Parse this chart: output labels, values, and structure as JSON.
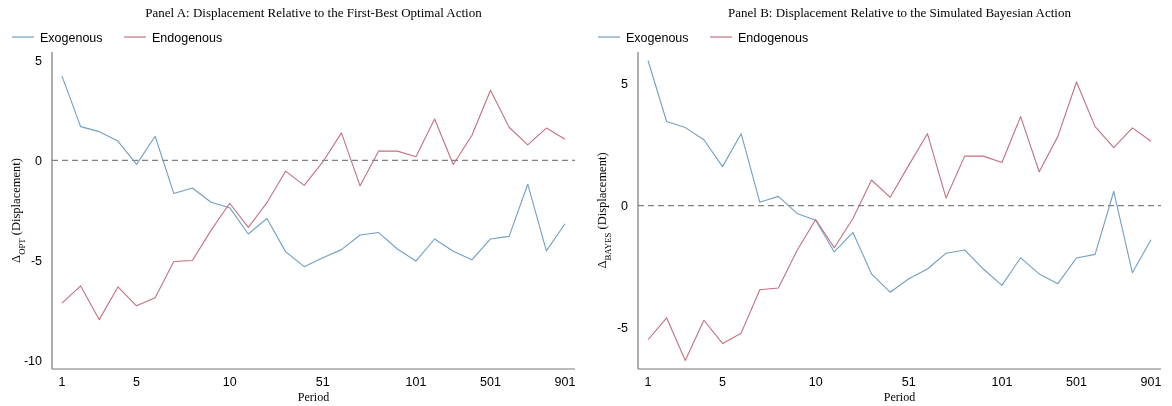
{
  "chart_data": [
    {
      "type": "line",
      "title": "Panel A: Displacement Relative to the First-Best Optimal Action",
      "xlabel": "Period",
      "ylabel": "Δ$_{OPT}$ (Displacement)",
      "categories": [
        "1",
        null,
        null,
        null,
        "5",
        null,
        null,
        null,
        null,
        "10",
        null,
        null,
        null,
        null,
        "51",
        null,
        null,
        null,
        null,
        "101",
        null,
        null,
        null,
        "501",
        null,
        null,
        null,
        "901"
      ],
      "series": [
        {
          "name": "Exogenous",
          "color": "#6f9fc6",
          "values": [
            4.2,
            1.68,
            1.43,
            0.96,
            -0.2,
            1.2,
            -1.65,
            -1.38,
            -2.09,
            -2.36,
            -3.67,
            -2.9,
            -4.55,
            -5.3,
            -4.86,
            -4.45,
            -3.72,
            -3.6,
            -4.42,
            -5.02,
            -3.92,
            -4.53,
            -4.96,
            -3.92,
            -3.79,
            -1.19,
            -4.51,
            -3.16
          ]
        },
        {
          "name": "Endogenous",
          "color": "#c2707f",
          "values": [
            -7.12,
            -6.26,
            -7.94,
            -6.31,
            -7.25,
            -6.85,
            -5.04,
            -4.99,
            -3.49,
            -2.14,
            -3.34,
            -2.11,
            -0.54,
            -1.25,
            -0.08,
            1.37,
            -1.27,
            0.46,
            0.46,
            0.18,
            2.06,
            -0.21,
            1.24,
            3.49,
            1.65,
            0.77,
            1.61,
            1.05
          ]
        }
      ],
      "ylim": [
        -10.4,
        5.4
      ],
      "yticks": [
        -10,
        -5,
        0,
        5
      ],
      "legend": "top left",
      "grid": false,
      "line_style": "solid",
      "ref_lines": [
        {
          "axis": "y",
          "value": 0,
          "color": "#808080",
          "line_style": "dashed"
        }
      ]
    },
    {
      "type": "line",
      "title": "Panel B: Displacement Relative to the Simulated Bayesian Action",
      "xlabel": "Period",
      "ylabel": "Δ$_{BAYES}$ (Displacement)",
      "categories": [
        "1",
        null,
        null,
        null,
        "5",
        null,
        null,
        null,
        null,
        "10",
        null,
        null,
        null,
        null,
        "51",
        null,
        null,
        null,
        null,
        "101",
        null,
        null,
        null,
        "501",
        null,
        null,
        null,
        "901"
      ],
      "series": [
        {
          "name": "Exogenous",
          "color": "#6f9fc6",
          "values": [
            5.95,
            3.45,
            3.2,
            2.7,
            1.6,
            2.95,
            0.14,
            0.38,
            -0.32,
            -0.6,
            -1.9,
            -1.1,
            -2.8,
            -3.55,
            -3.0,
            -2.6,
            -1.95,
            -1.82,
            -2.6,
            -3.27,
            -2.14,
            -2.8,
            -3.2,
            -2.15,
            -2.0,
            0.58,
            -2.75,
            -1.4
          ]
        },
        {
          "name": "Endogenous",
          "color": "#c2707f",
          "values": [
            -5.5,
            -4.6,
            -6.35,
            -4.7,
            -5.65,
            -5.23,
            -3.45,
            -3.38,
            -1.84,
            -0.57,
            -1.73,
            -0.53,
            1.05,
            0.34,
            1.66,
            2.95,
            0.31,
            2.03,
            2.03,
            1.77,
            3.65,
            1.39,
            2.84,
            5.07,
            3.24,
            2.38,
            3.19,
            2.64
          ]
        }
      ],
      "ylim": [
        -6.7,
        6.3
      ],
      "yticks": [
        -5,
        0,
        5
      ],
      "legend": "top left",
      "grid": false,
      "line_style": "solid",
      "ref_lines": [
        {
          "axis": "y",
          "value": 0,
          "color": "#808080",
          "line_style": "dashed"
        }
      ]
    }
  ]
}
